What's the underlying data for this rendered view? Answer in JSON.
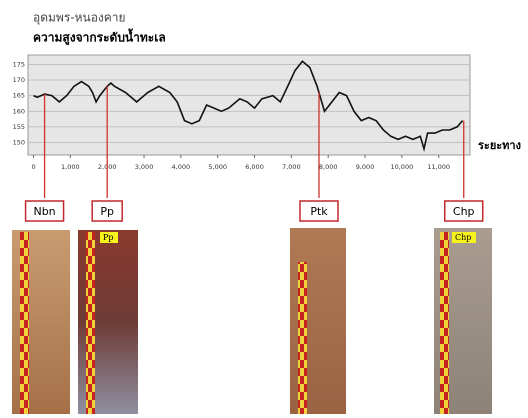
{
  "chart_data": {
    "type": "line",
    "title": "อุดมพร-หนองคาย",
    "subtitle": "ความสูงจากระดับน้ำทะเล",
    "x_label": "ระยะทาง",
    "x": [
      0,
      100,
      300,
      500,
      700,
      900,
      1100,
      1300,
      1500,
      1600,
      1700,
      1800,
      2000,
      2100,
      2200,
      2500,
      2800,
      3100,
      3400,
      3700,
      3900,
      4100,
      4300,
      4500,
      4700,
      4900,
      5100,
      5300,
      5600,
      5800,
      6000,
      6200,
      6500,
      6700,
      6900,
      7100,
      7300,
      7500,
      7700,
      7900,
      8100,
      8300,
      8500,
      8700,
      8900,
      9100,
      9300,
      9500,
      9700,
      9900,
      10100,
      10300,
      10500,
      10600,
      10700,
      10900,
      11100,
      11300,
      11500,
      11650
    ],
    "values": [
      165,
      164.5,
      165.5,
      165,
      163,
      165,
      168,
      169.5,
      168,
      166,
      163,
      165,
      168,
      169,
      168,
      166,
      163,
      166,
      168,
      166,
      163,
      157,
      156,
      157,
      162,
      161,
      160,
      161,
      164,
      163,
      161,
      164,
      165,
      163,
      168,
      173,
      176,
      174,
      168,
      160,
      163,
      166,
      165,
      160,
      157,
      158,
      157,
      154,
      152,
      151,
      152,
      151,
      152,
      148,
      153,
      153,
      154,
      154,
      155,
      157
    ],
    "color": "#111111",
    "xlim": [
      -150,
      11850
    ],
    "ylim": [
      146,
      178
    ],
    "xticks": [
      0,
      {
        "value": 1000,
        "label": "1,000"
      },
      {
        "value": 2000,
        "label": "2,000"
      },
      {
        "value": 3000,
        "label": "3,000"
      },
      {
        "value": 4000,
        "label": "4,000"
      },
      {
        "value": 5000,
        "label": "5,000"
      },
      {
        "value": 6000,
        "label": "6,000"
      },
      {
        "value": 7000,
        "label": "7,000"
      },
      {
        "value": 8000,
        "label": "8,000"
      },
      {
        "value": 9000,
        "label": "9,000"
      },
      {
        "value": 10000,
        "label": "10,000"
      },
      {
        "value": 11000,
        "label": "11,000"
      }
    ],
    "yticks": [
      150,
      155,
      160,
      165,
      170,
      175
    ],
    "grid": true,
    "annotations": [
      {
        "text": "Nbn",
        "x": 300
      },
      {
        "text": "Pp",
        "x": 2000,
        "tag": "Pp"
      },
      {
        "text": "Ptk",
        "x": 7750
      },
      {
        "text": "Chp",
        "x": 11680,
        "tag": "Chp"
      }
    ]
  }
}
